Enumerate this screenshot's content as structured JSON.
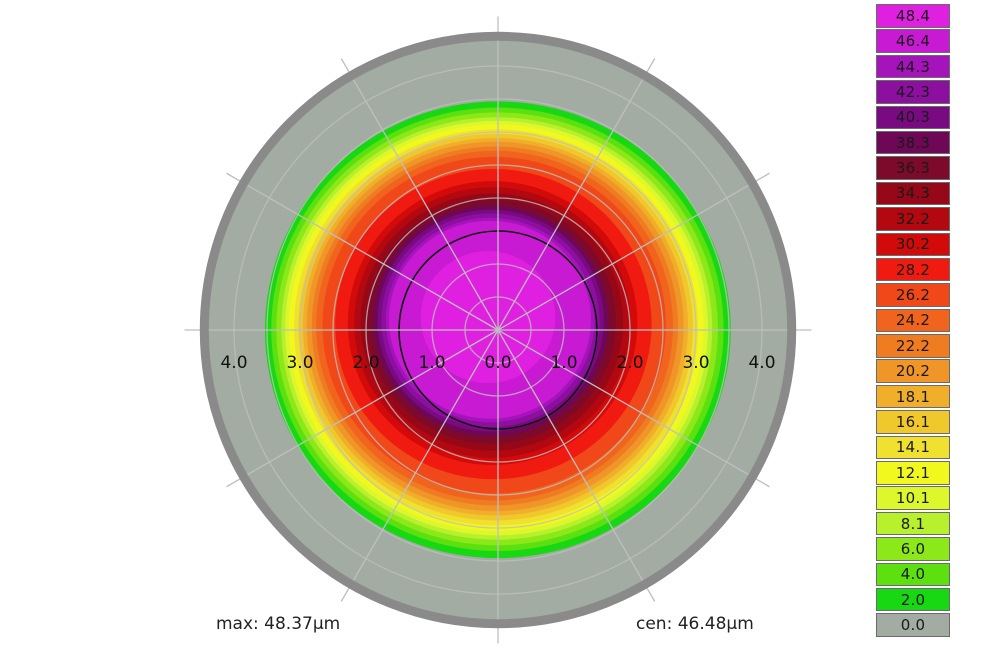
{
  "chart_data": {
    "type": "heatmap",
    "radial_tick_labels": [
      "4.0",
      "3.0",
      "2.0",
      "1.0",
      "0.0",
      "1.0",
      "2.0",
      "3.0",
      "4.0"
    ],
    "radial_tick_values": [
      -4,
      -3,
      -2,
      -1,
      0,
      1,
      2,
      3,
      4
    ],
    "radius_range": [
      0,
      4.0
    ],
    "grid": true,
    "legend_position": "right",
    "color_scale": [
      {
        "label": "48.4",
        "value": 48.4,
        "color": "#e020e0"
      },
      {
        "label": "46.4",
        "value": 46.4,
        "color": "#c81ad2"
      },
      {
        "label": "44.3",
        "value": 44.3,
        "color": "#a514bb"
      },
      {
        "label": "42.3",
        "value": 42.3,
        "color": "#8c0fa0"
      },
      {
        "label": "40.3",
        "value": 40.3,
        "color": "#7a0a82"
      },
      {
        "label": "38.3",
        "value": 38.3,
        "color": "#6e0856"
      },
      {
        "label": "36.3",
        "value": 36.3,
        "color": "#7d0a2a"
      },
      {
        "label": "34.3",
        "value": 34.3,
        "color": "#960818"
      },
      {
        "label": "32.2",
        "value": 32.2,
        "color": "#b40810"
      },
      {
        "label": "30.2",
        "value": 30.2,
        "color": "#d20a0a"
      },
      {
        "label": "28.2",
        "value": 28.2,
        "color": "#f01a10"
      },
      {
        "label": "26.2",
        "value": 26.2,
        "color": "#f04818"
      },
      {
        "label": "24.2",
        "value": 24.2,
        "color": "#f0641e"
      },
      {
        "label": "22.2",
        "value": 22.2,
        "color": "#f07c22"
      },
      {
        "label": "20.2",
        "value": 20.2,
        "color": "#f09628"
      },
      {
        "label": "18.1",
        "value": 18.1,
        "color": "#f0ae2a"
      },
      {
        "label": "16.1",
        "value": 16.1,
        "color": "#f0c82c"
      },
      {
        "label": "14.1",
        "value": 14.1,
        "color": "#f0e030"
      },
      {
        "label": "12.1",
        "value": 12.1,
        "color": "#f0f81e"
      },
      {
        "label": "10.1",
        "value": 10.1,
        "color": "#dcf82c"
      },
      {
        "label": "8.1",
        "value": 8.1,
        "color": "#b8f02e"
      },
      {
        "label": "6.0",
        "value": 6.0,
        "color": "#8ce818"
      },
      {
        "label": "4.0",
        "value": 4.0,
        "color": "#5ce010"
      },
      {
        "label": "2.0",
        "value": 2.0,
        "color": "#18d814"
      },
      {
        "label": "0.0",
        "value": 0.0,
        "color": "#a2aca2"
      }
    ],
    "isolines": [
      {
        "r": 1.0,
        "value": 48.4
      },
      {
        "r": 1.5,
        "value": 46.4
      },
      {
        "r": 1.55,
        "value": 44.3
      },
      {
        "r": 1.62,
        "value": 42.3
      },
      {
        "r": 1.68,
        "value": 40.3
      },
      {
        "r": 1.75,
        "value": 38.3
      },
      {
        "r": 1.85,
        "value": 36.3
      },
      {
        "r": 1.95,
        "value": 34.3
      },
      {
        "r": 2.05,
        "value": 32.2
      },
      {
        "r": 2.15,
        "value": 30.2
      },
      {
        "r": 2.35,
        "value": 28.2
      },
      {
        "r": 2.55,
        "value": 26.2
      },
      {
        "r": 2.65,
        "value": 24.2
      },
      {
        "r": 2.72,
        "value": 22.2
      },
      {
        "r": 2.8,
        "value": 20.2
      },
      {
        "r": 2.86,
        "value": 18.1
      },
      {
        "r": 2.93,
        "value": 16.1
      },
      {
        "r": 3.0,
        "value": 14.1
      },
      {
        "r": 3.08,
        "value": 12.1
      },
      {
        "r": 3.14,
        "value": 10.1
      },
      {
        "r": 3.2,
        "value": 8.1
      },
      {
        "r": 3.28,
        "value": 6.0
      },
      {
        "r": 3.36,
        "value": 4.0
      },
      {
        "r": 3.46,
        "value": 2.0
      }
    ],
    "max_label": "max: 48.37µm",
    "cen_label": "cen: 46.48µm"
  }
}
